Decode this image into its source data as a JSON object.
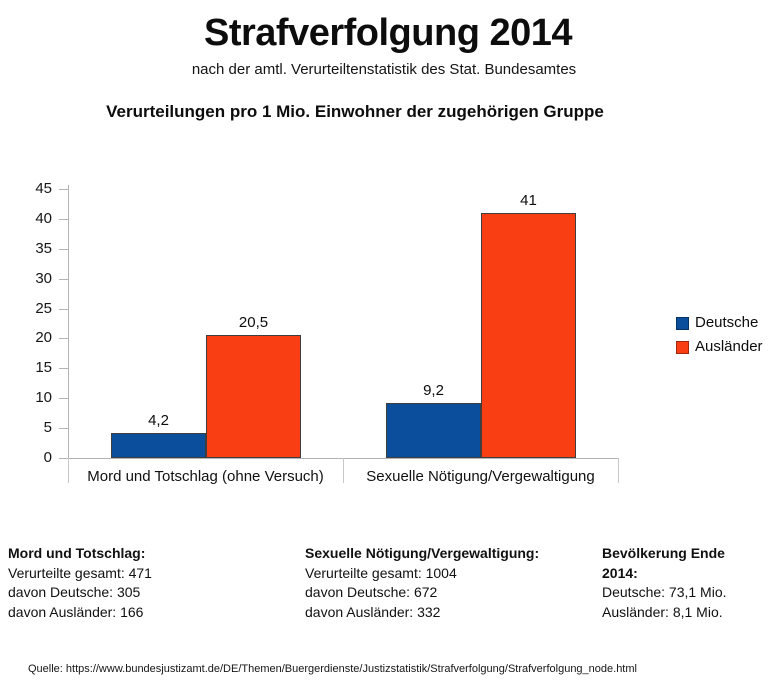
{
  "header": {
    "title": "Strafverfolgung 2014",
    "subtitle": "nach der amtl. Verurteiltenstatistik des Stat. Bundesamtes",
    "chart_heading": "Verurteilungen pro 1 Mio. Einwohner der zugehörigen Gruppe"
  },
  "chart_data": {
    "type": "bar",
    "title": "Verurteilungen pro 1 Mio. Einwohner der zugehörigen Gruppe",
    "categories": [
      "Mord und Totschlag (ohne Versuch)",
      "Sexuelle Nötigung/Vergewaltigung"
    ],
    "series": [
      {
        "name": "Deutsche",
        "color": "#0b4e9c",
        "values": [
          4.2,
          9.2
        ],
        "labels": [
          "4,2",
          "9,2"
        ]
      },
      {
        "name": "Ausländer",
        "color": "#f93e14",
        "values": [
          20.5,
          41
        ],
        "labels": [
          "20,5",
          "41"
        ]
      }
    ],
    "xlabel": "",
    "ylabel": "",
    "ylim": [
      0,
      45
    ],
    "ytick_step": 5,
    "grid": false,
    "legend_position": "right",
    "axis_color": "#b4b4b4"
  },
  "footnotes": {
    "col1": {
      "heading": "Mord und Totschlag:",
      "lines": [
        "Verurteilte gesamt: 471",
        "davon Deutsche: 305",
        "davon Ausländer: 166"
      ]
    },
    "col2": {
      "heading": "Sexuelle Nötigung/Vergewaltigung:",
      "lines": [
        "Verurteilte gesamt: 1004",
        "davon Deutsche: 672",
        "davon Ausländer: 332"
      ]
    },
    "col3": {
      "heading": "Bevölkerung Ende 2014:",
      "lines": [
        "Deutsche: 73,1 Mio.",
        "Ausländer: 8,1 Mio."
      ]
    }
  },
  "source": "Quelle: https://www.bundesjustizamt.de/DE/Themen/Buergerdienste/Justizstatistik/Strafverfolgung/Strafverfolgung_node.html"
}
